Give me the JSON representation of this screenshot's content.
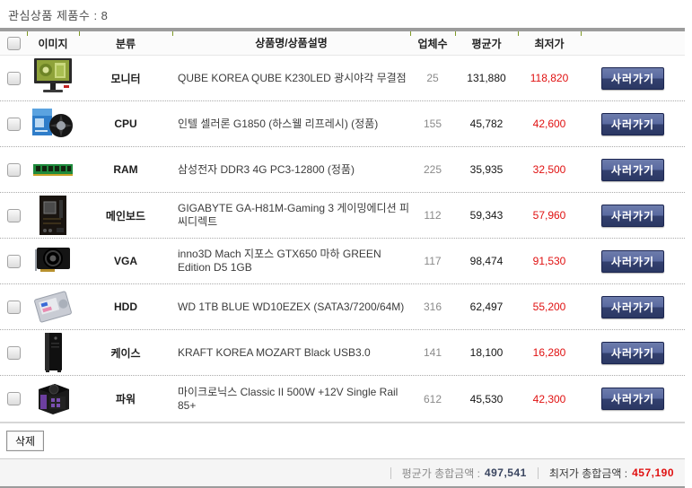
{
  "page": {
    "title": "관심상품 제품수 : 8"
  },
  "table": {
    "headers": {
      "image": "이미지",
      "category": "분류",
      "product": "상품명/상품설명",
      "vendors": "업체수",
      "avg_price": "평균가",
      "low_price": "최저가"
    },
    "buy_button_label": "사러가기",
    "rows": [
      {
        "icon": "monitor-image",
        "category": "모니터",
        "product": "QUBE KOREA QUBE K230LED 광시야각 무결점",
        "vendors": "25",
        "avg_price": "131,880",
        "low_price": "118,820"
      },
      {
        "icon": "cpu-image",
        "category": "CPU",
        "product": "인텔 셀러론 G1850 (하스웰 리프레시) (정품)",
        "vendors": "155",
        "avg_price": "45,782",
        "low_price": "42,600"
      },
      {
        "icon": "ram-image",
        "category": "RAM",
        "product": "삼성전자 DDR3 4G PC3-12800 (정품)",
        "vendors": "225",
        "avg_price": "35,935",
        "low_price": "32,500"
      },
      {
        "icon": "mainboard-image",
        "category": "메인보드",
        "product": "GIGABYTE GA-H81M-Gaming 3 게이밍에디션 피씨디렉트",
        "vendors": "112",
        "avg_price": "59,343",
        "low_price": "57,960"
      },
      {
        "icon": "vga-image",
        "category": "VGA",
        "product": "inno3D Mach 지포스 GTX650 마하 GREEN Edition D5 1GB",
        "vendors": "117",
        "avg_price": "98,474",
        "low_price": "91,530"
      },
      {
        "icon": "hdd-image",
        "category": "HDD",
        "product": "WD 1TB BLUE WD10EZEX (SATA3/7200/64M)",
        "vendors": "316",
        "avg_price": "62,497",
        "low_price": "55,200"
      },
      {
        "icon": "case-image",
        "category": "케이스",
        "product": "KRAFT KOREA MOZART Black USB3.0",
        "vendors": "141",
        "avg_price": "18,100",
        "low_price": "16,280"
      },
      {
        "icon": "psu-image",
        "category": "파워",
        "product": "마이크로닉스 Classic II 500W +12V Single Rail 85+",
        "vendors": "612",
        "avg_price": "45,530",
        "low_price": "42,300"
      }
    ]
  },
  "actions": {
    "delete_label": "삭제"
  },
  "summary": {
    "avg_total_label": "평균가 총합금액 :",
    "avg_total_value": "497,541",
    "low_total_label": "최저가 총합금액 :",
    "low_total_value": "457,190"
  },
  "colors": {
    "lowest_price_red": "#e01111",
    "buy_button_navy": "#33406f",
    "header_tick_green": "#7f9a28",
    "top_bar_gray": "#9c9c9c",
    "avg_total_navy": "#3a4560"
  }
}
